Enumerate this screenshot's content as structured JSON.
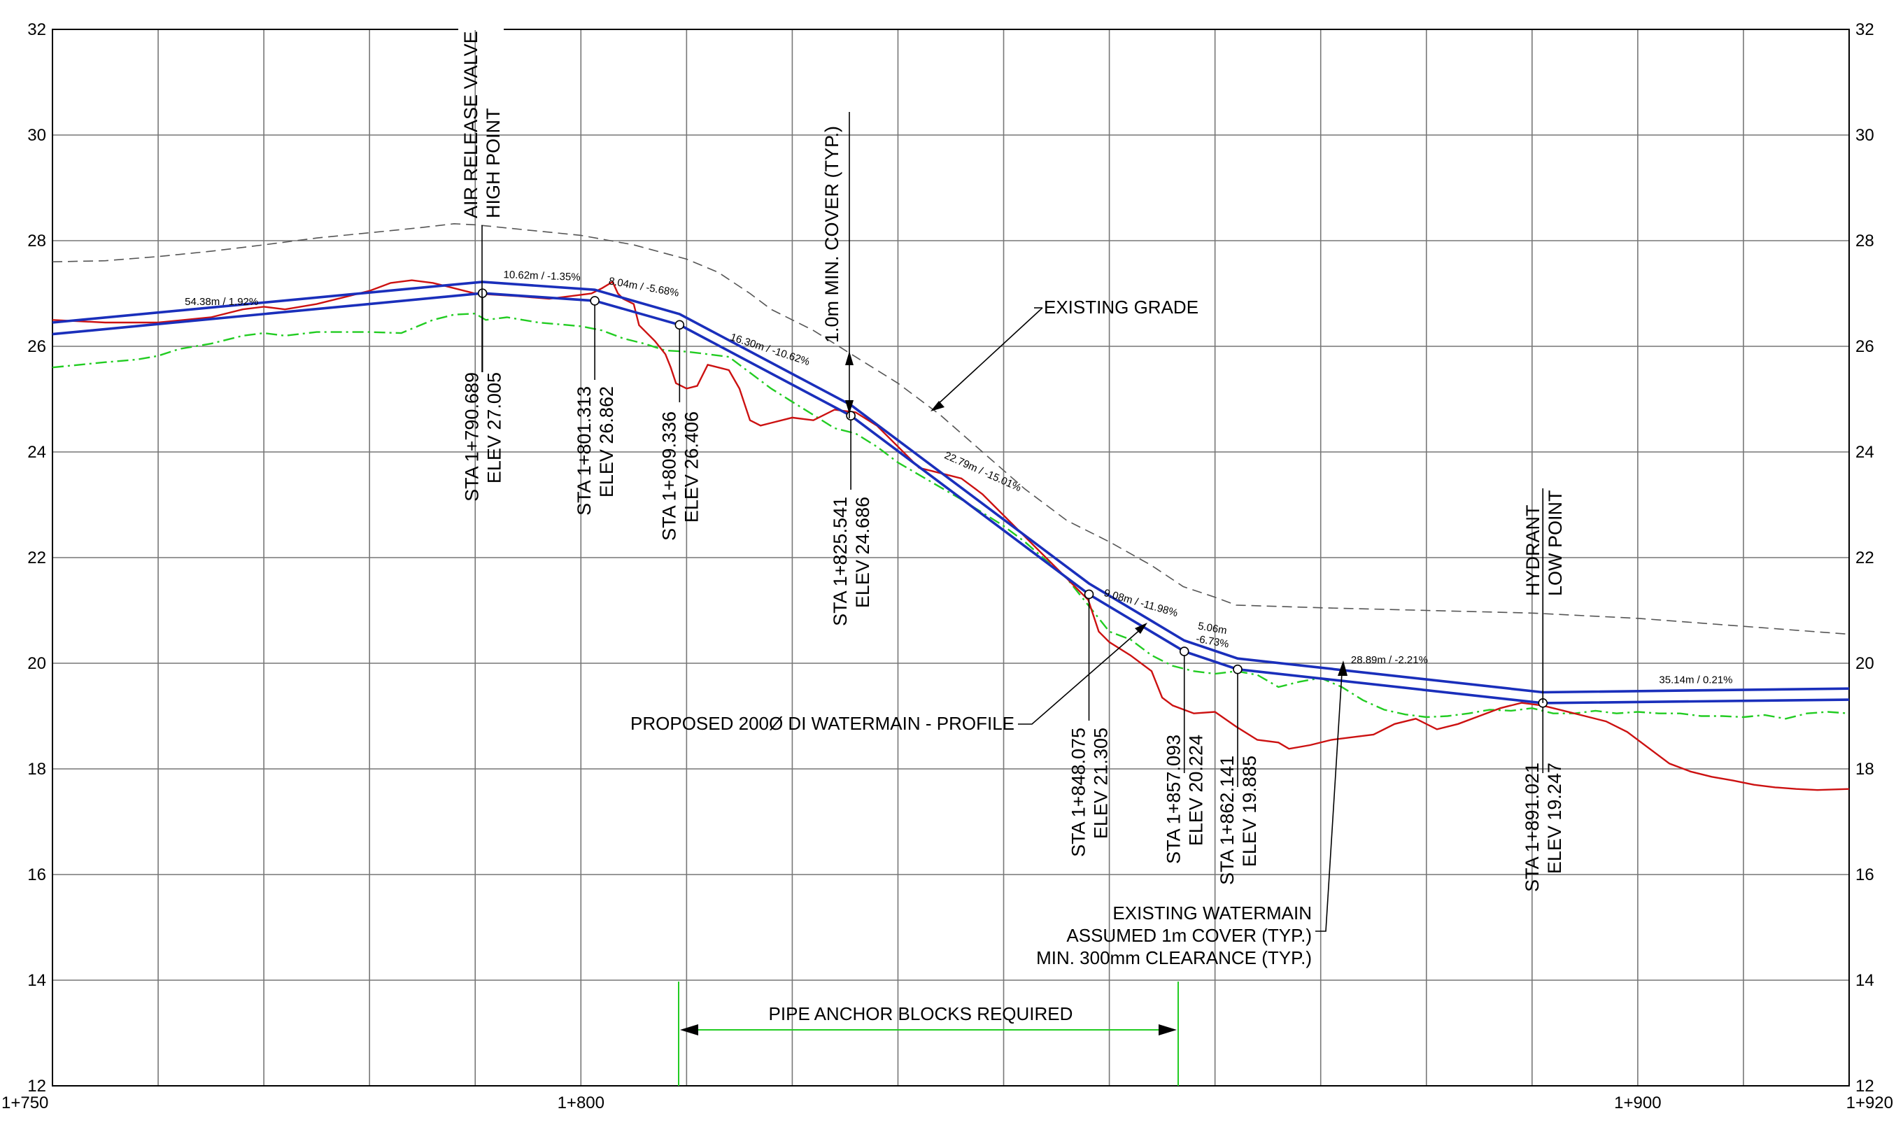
{
  "chart_data": {
    "type": "line",
    "title": "",
    "xlabel": "",
    "ylabel": "",
    "xlim": [
      1750,
      1920
    ],
    "ylim": [
      12,
      32
    ],
    "x_tick_labels": [
      {
        "x": 1750,
        "label": "1+750"
      },
      {
        "x": 1800,
        "label": "1+800"
      },
      {
        "x": 1900,
        "label": "1+900"
      },
      {
        "x": 1920,
        "label": "1+920"
      }
    ],
    "y_ticks": [
      12,
      14,
      16,
      18,
      20,
      22,
      24,
      26,
      28,
      30,
      32
    ],
    "grid": true,
    "series": [
      {
        "role": "existing-grade",
        "color": "#555555",
        "style": "dashed",
        "points": [
          [
            1750,
            27.6
          ],
          [
            1755,
            27.62
          ],
          [
            1760,
            27.7
          ],
          [
            1765,
            27.8
          ],
          [
            1770,
            27.92
          ],
          [
            1775,
            28.05
          ],
          [
            1780,
            28.15
          ],
          [
            1785,
            28.25
          ],
          [
            1788,
            28.32
          ],
          [
            1790,
            28.3
          ],
          [
            1795,
            28.2
          ],
          [
            1800,
            28.1
          ],
          [
            1805,
            27.92
          ],
          [
            1810,
            27.65
          ],
          [
            1813,
            27.4
          ],
          [
            1816,
            27.0
          ],
          [
            1818,
            26.7
          ],
          [
            1822,
            26.3
          ],
          [
            1826,
            25.8
          ],
          [
            1830,
            25.3
          ],
          [
            1834,
            24.7
          ],
          [
            1838,
            24.0
          ],
          [
            1842,
            23.3
          ],
          [
            1846,
            22.7
          ],
          [
            1850,
            22.3
          ],
          [
            1854,
            21.85
          ],
          [
            1857,
            21.45
          ],
          [
            1860,
            21.25
          ],
          [
            1862,
            21.1
          ],
          [
            1870,
            21.05
          ],
          [
            1880,
            21.0
          ],
          [
            1890,
            20.95
          ],
          [
            1900,
            20.85
          ],
          [
            1910,
            20.7
          ],
          [
            1920,
            20.55
          ]
        ]
      },
      {
        "role": "existing-watermain",
        "color": "#22cc22",
        "style": "dash-dot",
        "points": [
          [
            1750,
            25.6
          ],
          [
            1755,
            25.7
          ],
          [
            1758,
            25.75
          ],
          [
            1760,
            25.82
          ],
          [
            1762,
            25.95
          ],
          [
            1765,
            26.05
          ],
          [
            1768,
            26.2
          ],
          [
            1770,
            26.25
          ],
          [
            1772,
            26.2
          ],
          [
            1775,
            26.27
          ],
          [
            1780,
            26.27
          ],
          [
            1783,
            26.25
          ],
          [
            1786,
            26.5
          ],
          [
            1788,
            26.6
          ],
          [
            1790,
            26.62
          ],
          [
            1791,
            26.5
          ],
          [
            1793,
            26.55
          ],
          [
            1796,
            26.45
          ],
          [
            1800,
            26.38
          ],
          [
            1802,
            26.3
          ],
          [
            1804,
            26.15
          ],
          [
            1806,
            26.05
          ],
          [
            1808,
            25.92
          ],
          [
            1810,
            25.9
          ],
          [
            1812,
            25.85
          ],
          [
            1814,
            25.8
          ],
          [
            1816,
            25.5
          ],
          [
            1818,
            25.2
          ],
          [
            1820,
            24.95
          ],
          [
            1822,
            24.7
          ],
          [
            1824,
            24.45
          ],
          [
            1826,
            24.35
          ],
          [
            1828,
            24.1
          ],
          [
            1830,
            23.8
          ],
          [
            1833,
            23.45
          ],
          [
            1836,
            23.1
          ],
          [
            1838,
            22.85
          ],
          [
            1840,
            22.6
          ],
          [
            1842,
            22.3
          ],
          [
            1844,
            21.95
          ],
          [
            1846,
            21.6
          ],
          [
            1848,
            21.1
          ],
          [
            1850,
            20.6
          ],
          [
            1852,
            20.45
          ],
          [
            1854,
            20.15
          ],
          [
            1856,
            19.95
          ],
          [
            1858,
            19.85
          ],
          [
            1860,
            19.8
          ],
          [
            1862,
            19.85
          ],
          [
            1864,
            19.78
          ],
          [
            1866,
            19.55
          ],
          [
            1868,
            19.65
          ],
          [
            1870,
            19.72
          ],
          [
            1872,
            19.55
          ],
          [
            1874,
            19.3
          ],
          [
            1876,
            19.12
          ],
          [
            1878,
            19.03
          ],
          [
            1880,
            18.98
          ],
          [
            1882,
            19.0
          ],
          [
            1884,
            19.05
          ],
          [
            1886,
            19.12
          ],
          [
            1888,
            19.1
          ],
          [
            1890,
            19.15
          ],
          [
            1892,
            19.05
          ],
          [
            1894,
            19.05
          ],
          [
            1896,
            19.1
          ],
          [
            1898,
            19.05
          ],
          [
            1900,
            19.08
          ],
          [
            1902,
            19.05
          ],
          [
            1904,
            19.05
          ],
          [
            1906,
            19.0
          ],
          [
            1908,
            19.0
          ],
          [
            1910,
            18.98
          ],
          [
            1912,
            19.02
          ],
          [
            1914,
            18.95
          ],
          [
            1916,
            19.05
          ],
          [
            1918,
            19.08
          ],
          [
            1920,
            19.05
          ]
        ]
      },
      {
        "role": "ground-profile",
        "color": "#cc1111",
        "style": "solid",
        "points": [
          [
            1750,
            26.5
          ],
          [
            1755,
            26.45
          ],
          [
            1760,
            26.45
          ],
          [
            1765,
            26.55
          ],
          [
            1768,
            26.7
          ],
          [
            1770,
            26.75
          ],
          [
            1772,
            26.7
          ],
          [
            1775,
            26.8
          ],
          [
            1778,
            26.95
          ],
          [
            1780,
            27.05
          ],
          [
            1782,
            27.2
          ],
          [
            1784,
            27.25
          ],
          [
            1786,
            27.2
          ],
          [
            1788,
            27.1
          ],
          [
            1790,
            27.0
          ],
          [
            1794,
            26.95
          ],
          [
            1797,
            26.9
          ],
          [
            1799,
            26.95
          ],
          [
            1801,
            27.0
          ],
          [
            1802,
            27.1
          ],
          [
            1803,
            27.22
          ],
          [
            1803.5,
            27.0
          ],
          [
            1804,
            26.9
          ],
          [
            1805,
            26.8
          ],
          [
            1805.5,
            26.4
          ],
          [
            1806,
            26.3
          ],
          [
            1807,
            26.1
          ],
          [
            1808,
            25.85
          ],
          [
            1808.5,
            25.6
          ],
          [
            1809,
            25.3
          ],
          [
            1810,
            25.2
          ],
          [
            1811,
            25.25
          ],
          [
            1812,
            25.65
          ],
          [
            1813,
            25.6
          ],
          [
            1814,
            25.55
          ],
          [
            1815,
            25.2
          ],
          [
            1816,
            24.6
          ],
          [
            1817,
            24.5
          ],
          [
            1818,
            24.55
          ],
          [
            1820,
            24.65
          ],
          [
            1822,
            24.6
          ],
          [
            1824,
            24.8
          ],
          [
            1826,
            24.75
          ],
          [
            1828,
            24.5
          ],
          [
            1830,
            24.1
          ],
          [
            1832,
            23.7
          ],
          [
            1834,
            23.6
          ],
          [
            1836,
            23.5
          ],
          [
            1838,
            23.2
          ],
          [
            1840,
            22.8
          ],
          [
            1842,
            22.4
          ],
          [
            1844,
            22.0
          ],
          [
            1846,
            21.6
          ],
          [
            1848,
            21.2
          ],
          [
            1849,
            20.6
          ],
          [
            1850,
            20.4
          ],
          [
            1852,
            20.15
          ],
          [
            1854,
            19.85
          ],
          [
            1855,
            19.35
          ],
          [
            1856,
            19.2
          ],
          [
            1858,
            19.05
          ],
          [
            1860,
            19.08
          ],
          [
            1862,
            18.8
          ],
          [
            1864,
            18.55
          ],
          [
            1866,
            18.5
          ],
          [
            1867,
            18.38
          ],
          [
            1869,
            18.45
          ],
          [
            1871,
            18.55
          ],
          [
            1873,
            18.6
          ],
          [
            1875,
            18.65
          ],
          [
            1877,
            18.85
          ],
          [
            1879,
            18.95
          ],
          [
            1881,
            18.75
          ],
          [
            1883,
            18.85
          ],
          [
            1885,
            19.0
          ],
          [
            1887,
            19.15
          ],
          [
            1889,
            19.25
          ],
          [
            1891,
            19.2
          ],
          [
            1893,
            19.1
          ],
          [
            1895,
            19.0
          ],
          [
            1897,
            18.9
          ],
          [
            1899,
            18.7
          ],
          [
            1901,
            18.4
          ],
          [
            1903,
            18.1
          ],
          [
            1905,
            17.95
          ],
          [
            1907,
            17.85
          ],
          [
            1909,
            17.78
          ],
          [
            1911,
            17.7
          ],
          [
            1913,
            17.65
          ],
          [
            1915,
            17.62
          ],
          [
            1917,
            17.6
          ],
          [
            1920,
            17.62
          ]
        ]
      },
      {
        "role": "watermain-top",
        "color": "#1a2fbb",
        "style": "solid",
        "points": [
          [
            1750,
            26.45
          ],
          [
            1790.689,
            27.22
          ],
          [
            1801.313,
            27.07
          ],
          [
            1809.336,
            26.61
          ],
          [
            1825.541,
            24.89
          ],
          [
            1848.075,
            21.51
          ],
          [
            1857.093,
            20.43
          ],
          [
            1862.141,
            20.09
          ],
          [
            1891.021,
            19.45
          ],
          [
            1920,
            19.52
          ]
        ]
      },
      {
        "role": "watermain-bottom",
        "color": "#1a2fbb",
        "style": "solid",
        "points": [
          [
            1750,
            26.23
          ],
          [
            1790.689,
            27.005
          ],
          [
            1801.313,
            26.862
          ],
          [
            1809.336,
            26.406
          ],
          [
            1825.541,
            24.686
          ],
          [
            1848.075,
            21.305
          ],
          [
            1857.093,
            20.224
          ],
          [
            1862.141,
            19.885
          ],
          [
            1891.021,
            19.247
          ],
          [
            1920,
            19.31
          ]
        ]
      }
    ],
    "nodes": [
      {
        "x": 1790.689,
        "y": 27.005,
        "sta": "STA 1+790.689",
        "elev": "ELEV 27.005"
      },
      {
        "x": 1801.313,
        "y": 26.862,
        "sta": "STA 1+801.313",
        "elev": "ELEV 26.862"
      },
      {
        "x": 1809.336,
        "y": 26.406,
        "sta": "STA 1+809.336",
        "elev": "ELEV 26.406"
      },
      {
        "x": 1825.541,
        "y": 24.686,
        "sta": "STA 1+825.541",
        "elev": "ELEV 24.686"
      },
      {
        "x": 1848.075,
        "y": 21.305,
        "sta": "STA 1+848.075",
        "elev": "ELEV 21.305"
      },
      {
        "x": 1857.093,
        "y": 20.224,
        "sta": "STA 1+857.093",
        "elev": "ELEV 20.224"
      },
      {
        "x": 1862.141,
        "y": 19.885,
        "sta": "STA 1+862.141",
        "elev": "ELEV 19.885"
      },
      {
        "x": 1891.021,
        "y": 19.247,
        "sta": "STA 1+891.021",
        "elev": "ELEV 19.247"
      }
    ],
    "segment_labels": [
      {
        "text": "54.38m / 1.92%",
        "x": 1766,
        "y": 26.78
      },
      {
        "text": "10.62m / -1.35%",
        "x": 1796.3,
        "y": 27.27
      },
      {
        "text": "8.04m / -5.68%",
        "x": 1805.9,
        "y": 27.06
      },
      {
        "text": "16.30m / -10.62%",
        "x": 1817.8,
        "y": 25.88
      },
      {
        "text": "22.79m / -15.01%",
        "x": 1837.9,
        "y": 23.57
      },
      {
        "text": "9.08m / -11.98%",
        "x": 1852.9,
        "y": 21.08
      },
      {
        "text": "5.06m",
        "x": 1859.7,
        "y": 20.6
      },
      {
        "text": "-6.73%",
        "x": 1859.7,
        "y": 20.35
      },
      {
        "text": "28.89m / -2.21%",
        "x": 1876.5,
        "y": 20.0
      },
      {
        "text": "35.14m / 0.21%",
        "x": 1905.5,
        "y": 19.62
      }
    ],
    "annotations": {
      "air_release_1": "AIR RELEASE VALVE",
      "air_release_2": "HIGH POINT",
      "min_cover": "1.0m MIN. COVER (TYP.)",
      "existing_grade": "EXISTING GRADE",
      "proposed": "PROPOSED 200Ø DI WATERMAIN - PROFILE",
      "existing_wm_1": "EXISTING WATERMAIN",
      "existing_wm_2": "ASSUMED 1m COVER (TYP.)",
      "existing_wm_3": "MIN. 300mm CLEARANCE (TYP.)",
      "pipe_anchor": "PIPE ANCHOR BLOCKS REQUIRED",
      "hydrant_1": "HYDRANT",
      "hydrant_2": "LOW POINT"
    },
    "anchor_zone": [
      1809.336,
      1856.4
    ]
  }
}
